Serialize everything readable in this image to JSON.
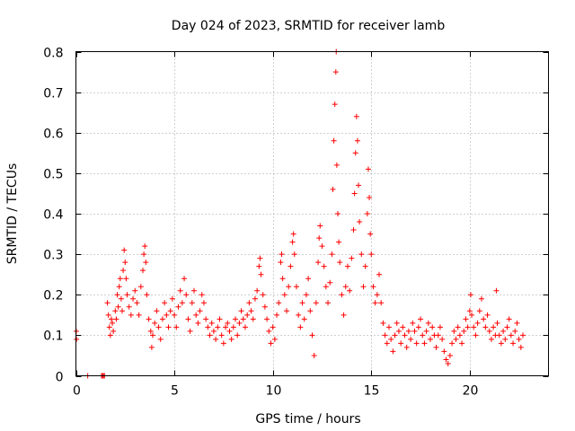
{
  "chart_data": {
    "type": "scatter",
    "title": "Day 024 of 2023, SRMTID for receiver lamb",
    "xlabel": "GPS time / hours",
    "ylabel": "SRMTID / TECUs",
    "xlim": [
      0,
      24
    ],
    "ylim": [
      0,
      0.8
    ],
    "xticks": [
      0,
      5,
      10,
      15,
      20
    ],
    "yticks": [
      0,
      0.1,
      0.2,
      0.3,
      0.4,
      0.5,
      0.6,
      0.7,
      0.8
    ],
    "xtick_labels": [
      "0",
      "5",
      "10",
      "15",
      "20"
    ],
    "ytick_labels": [
      "0",
      "0.1",
      "0.2",
      "0.3",
      "0.4",
      "0.5",
      "0.6",
      "0.7",
      "0.8"
    ],
    "grid": true,
    "marker": "plus",
    "color": "#ff0000",
    "series": [
      {
        "name": "SRMTID",
        "points": [
          [
            0.02,
            0.11
          ],
          [
            0.03,
            0.09
          ],
          [
            0.6,
            0.0
          ],
          [
            1.3,
            0.0
          ],
          [
            1.35,
            0.0
          ],
          [
            1.4,
            0.0
          ],
          [
            1.45,
            0.0
          ],
          [
            1.6,
            0.18
          ],
          [
            1.65,
            0.15
          ],
          [
            1.7,
            0.12
          ],
          [
            1.75,
            0.1
          ],
          [
            1.8,
            0.14
          ],
          [
            1.85,
            0.13
          ],
          [
            1.9,
            0.11
          ],
          [
            2.0,
            0.16
          ],
          [
            2.05,
            0.14
          ],
          [
            2.1,
            0.2
          ],
          [
            2.15,
            0.17
          ],
          [
            2.2,
            0.22
          ],
          [
            2.25,
            0.24
          ],
          [
            2.3,
            0.19
          ],
          [
            2.35,
            0.16
          ],
          [
            2.4,
            0.26
          ],
          [
            2.45,
            0.31
          ],
          [
            2.5,
            0.28
          ],
          [
            2.55,
            0.24
          ],
          [
            2.6,
            0.2
          ],
          [
            2.7,
            0.17
          ],
          [
            2.8,
            0.15
          ],
          [
            2.9,
            0.19
          ],
          [
            3.0,
            0.21
          ],
          [
            3.1,
            0.18
          ],
          [
            3.2,
            0.15
          ],
          [
            3.3,
            0.22
          ],
          [
            3.4,
            0.26
          ],
          [
            3.45,
            0.3
          ],
          [
            3.5,
            0.32
          ],
          [
            3.55,
            0.28
          ],
          [
            3.6,
            0.2
          ],
          [
            3.7,
            0.14
          ],
          [
            3.8,
            0.11
          ],
          [
            3.85,
            0.07
          ],
          [
            3.9,
            0.1
          ],
          [
            4.0,
            0.13
          ],
          [
            4.1,
            0.16
          ],
          [
            4.2,
            0.12
          ],
          [
            4.3,
            0.09
          ],
          [
            4.4,
            0.14
          ],
          [
            4.5,
            0.18
          ],
          [
            4.6,
            0.15
          ],
          [
            4.7,
            0.12
          ],
          [
            4.8,
            0.16
          ],
          [
            4.9,
            0.19
          ],
          [
            5.0,
            0.15
          ],
          [
            5.1,
            0.12
          ],
          [
            5.2,
            0.17
          ],
          [
            5.3,
            0.21
          ],
          [
            5.4,
            0.18
          ],
          [
            5.5,
            0.24
          ],
          [
            5.6,
            0.2
          ],
          [
            5.7,
            0.14
          ],
          [
            5.8,
            0.11
          ],
          [
            5.9,
            0.18
          ],
          [
            6.0,
            0.21
          ],
          [
            6.1,
            0.15
          ],
          [
            6.2,
            0.13
          ],
          [
            6.3,
            0.16
          ],
          [
            6.4,
            0.2
          ],
          [
            6.5,
            0.18
          ],
          [
            6.6,
            0.14
          ],
          [
            6.7,
            0.12
          ],
          [
            6.8,
            0.1
          ],
          [
            6.9,
            0.13
          ],
          [
            7.0,
            0.11
          ],
          [
            7.1,
            0.09
          ],
          [
            7.2,
            0.12
          ],
          [
            7.3,
            0.14
          ],
          [
            7.4,
            0.1
          ],
          [
            7.5,
            0.08
          ],
          [
            7.6,
            0.12
          ],
          [
            7.7,
            0.13
          ],
          [
            7.8,
            0.11
          ],
          [
            7.9,
            0.09
          ],
          [
            8.0,
            0.12
          ],
          [
            8.1,
            0.14
          ],
          [
            8.2,
            0.1
          ],
          [
            8.3,
            0.13
          ],
          [
            8.4,
            0.16
          ],
          [
            8.5,
            0.14
          ],
          [
            8.6,
            0.12
          ],
          [
            8.7,
            0.15
          ],
          [
            8.8,
            0.18
          ],
          [
            8.9,
            0.16
          ],
          [
            9.0,
            0.14
          ],
          [
            9.1,
            0.19
          ],
          [
            9.2,
            0.21
          ],
          [
            9.3,
            0.27
          ],
          [
            9.35,
            0.29
          ],
          [
            9.4,
            0.25
          ],
          [
            9.5,
            0.2
          ],
          [
            9.6,
            0.17
          ],
          [
            9.7,
            0.14
          ],
          [
            9.8,
            0.11
          ],
          [
            9.9,
            0.08
          ],
          [
            10.0,
            0.12
          ],
          [
            10.1,
            0.09
          ],
          [
            10.2,
            0.15
          ],
          [
            10.3,
            0.18
          ],
          [
            10.4,
            0.28
          ],
          [
            10.45,
            0.3
          ],
          [
            10.5,
            0.24
          ],
          [
            10.6,
            0.2
          ],
          [
            10.7,
            0.16
          ],
          [
            10.8,
            0.22
          ],
          [
            10.9,
            0.27
          ],
          [
            11.0,
            0.33
          ],
          [
            11.05,
            0.35
          ],
          [
            11.1,
            0.3
          ],
          [
            11.2,
            0.22
          ],
          [
            11.3,
            0.15
          ],
          [
            11.4,
            0.12
          ],
          [
            11.5,
            0.18
          ],
          [
            11.6,
            0.14
          ],
          [
            11.7,
            0.2
          ],
          [
            11.8,
            0.24
          ],
          [
            11.9,
            0.16
          ],
          [
            12.0,
            0.1
          ],
          [
            12.1,
            0.05
          ],
          [
            12.2,
            0.18
          ],
          [
            12.3,
            0.28
          ],
          [
            12.35,
            0.34
          ],
          [
            12.4,
            0.37
          ],
          [
            12.5,
            0.32
          ],
          [
            12.6,
            0.27
          ],
          [
            12.7,
            0.22
          ],
          [
            12.8,
            0.18
          ],
          [
            12.9,
            0.23
          ],
          [
            13.0,
            0.3
          ],
          [
            13.05,
            0.46
          ],
          [
            13.1,
            0.58
          ],
          [
            13.15,
            0.67
          ],
          [
            13.2,
            0.75
          ],
          [
            13.22,
            0.8
          ],
          [
            13.25,
            0.52
          ],
          [
            13.3,
            0.4
          ],
          [
            13.35,
            0.33
          ],
          [
            13.4,
            0.28
          ],
          [
            13.5,
            0.2
          ],
          [
            13.6,
            0.15
          ],
          [
            13.7,
            0.22
          ],
          [
            13.8,
            0.27
          ],
          [
            13.9,
            0.21
          ],
          [
            14.0,
            0.29
          ],
          [
            14.1,
            0.36
          ],
          [
            14.15,
            0.45
          ],
          [
            14.2,
            0.55
          ],
          [
            14.25,
            0.64
          ],
          [
            14.3,
            0.58
          ],
          [
            14.35,
            0.47
          ],
          [
            14.4,
            0.38
          ],
          [
            14.5,
            0.3
          ],
          [
            14.6,
            0.22
          ],
          [
            14.7,
            0.27
          ],
          [
            14.8,
            0.4
          ],
          [
            14.85,
            0.51
          ],
          [
            14.9,
            0.44
          ],
          [
            14.95,
            0.35
          ],
          [
            15.0,
            0.3
          ],
          [
            15.1,
            0.22
          ],
          [
            15.2,
            0.18
          ],
          [
            15.3,
            0.2
          ],
          [
            15.4,
            0.25
          ],
          [
            15.5,
            0.18
          ],
          [
            15.6,
            0.13
          ],
          [
            15.7,
            0.1
          ],
          [
            15.8,
            0.08
          ],
          [
            15.9,
            0.12
          ],
          [
            16.0,
            0.09
          ],
          [
            16.1,
            0.06
          ],
          [
            16.2,
            0.1
          ],
          [
            16.3,
            0.13
          ],
          [
            16.4,
            0.11
          ],
          [
            16.5,
            0.08
          ],
          [
            16.6,
            0.12
          ],
          [
            16.7,
            0.1
          ],
          [
            16.8,
            0.07
          ],
          [
            16.9,
            0.11
          ],
          [
            17.0,
            0.09
          ],
          [
            17.1,
            0.13
          ],
          [
            17.2,
            0.11
          ],
          [
            17.3,
            0.08
          ],
          [
            17.4,
            0.12
          ],
          [
            17.5,
            0.14
          ],
          [
            17.6,
            0.1
          ],
          [
            17.7,
            0.08
          ],
          [
            17.8,
            0.11
          ],
          [
            17.9,
            0.13
          ],
          [
            18.0,
            0.09
          ],
          [
            18.1,
            0.12
          ],
          [
            18.2,
            0.1
          ],
          [
            18.3,
            0.07
          ],
          [
            18.4,
            0.1
          ],
          [
            18.5,
            0.12
          ],
          [
            18.6,
            0.09
          ],
          [
            18.7,
            0.06
          ],
          [
            18.8,
            0.04
          ],
          [
            18.9,
            0.03
          ],
          [
            19.0,
            0.05
          ],
          [
            19.1,
            0.08
          ],
          [
            19.2,
            0.11
          ],
          [
            19.3,
            0.09
          ],
          [
            19.4,
            0.12
          ],
          [
            19.5,
            0.1
          ],
          [
            19.6,
            0.08
          ],
          [
            19.7,
            0.11
          ],
          [
            19.8,
            0.14
          ],
          [
            19.9,
            0.12
          ],
          [
            20.0,
            0.16
          ],
          [
            20.05,
            0.2
          ],
          [
            20.1,
            0.15
          ],
          [
            20.2,
            0.12
          ],
          [
            20.3,
            0.1
          ],
          [
            20.4,
            0.13
          ],
          [
            20.5,
            0.16
          ],
          [
            20.6,
            0.19
          ],
          [
            20.7,
            0.14
          ],
          [
            20.8,
            0.12
          ],
          [
            20.9,
            0.15
          ],
          [
            21.0,
            0.11
          ],
          [
            21.1,
            0.09
          ],
          [
            21.2,
            0.12
          ],
          [
            21.3,
            0.1
          ],
          [
            21.35,
            0.21
          ],
          [
            21.4,
            0.13
          ],
          [
            21.5,
            0.1
          ],
          [
            21.6,
            0.08
          ],
          [
            21.7,
            0.11
          ],
          [
            21.8,
            0.09
          ],
          [
            21.9,
            0.12
          ],
          [
            22.0,
            0.14
          ],
          [
            22.1,
            0.1
          ],
          [
            22.2,
            0.08
          ],
          [
            22.3,
            0.11
          ],
          [
            22.4,
            0.13
          ],
          [
            22.5,
            0.09
          ],
          [
            22.6,
            0.07
          ],
          [
            22.7,
            0.1
          ]
        ]
      }
    ]
  }
}
